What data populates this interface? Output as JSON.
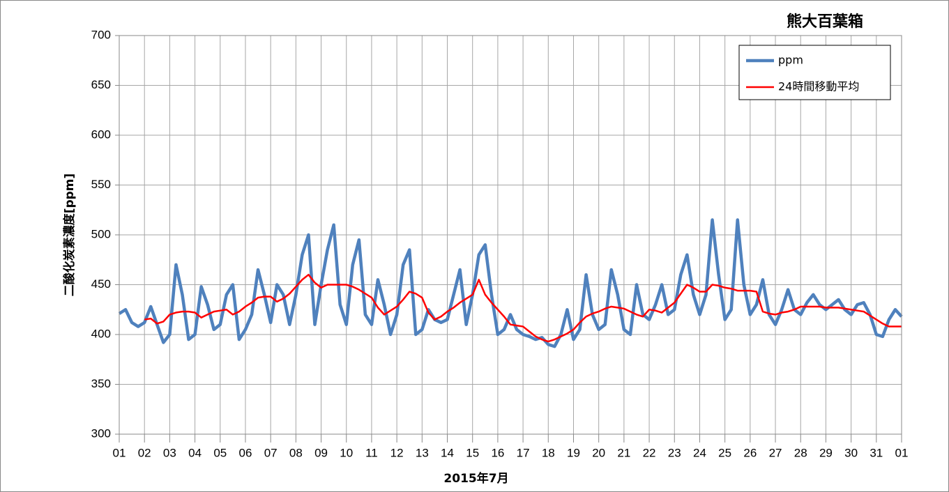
{
  "chart_data": {
    "type": "line",
    "title": "熊大百葉箱",
    "x_label": "2015年7月",
    "y_label": "二酸化炭素濃度[ppm]",
    "ylim": [
      300,
      700
    ],
    "yticks": [
      300,
      350,
      400,
      450,
      500,
      550,
      600,
      650,
      700
    ],
    "xlim": [
      0,
      31
    ],
    "xticks": [
      {
        "value": 0,
        "label": "01"
      },
      {
        "value": 1,
        "label": "02"
      },
      {
        "value": 2,
        "label": "03"
      },
      {
        "value": 3,
        "label": "04"
      },
      {
        "value": 4,
        "label": "05"
      },
      {
        "value": 5,
        "label": "06"
      },
      {
        "value": 6,
        "label": "07"
      },
      {
        "value": 7,
        "label": "08"
      },
      {
        "value": 8,
        "label": "09"
      },
      {
        "value": 9,
        "label": "10"
      },
      {
        "value": 10,
        "label": "11"
      },
      {
        "value": 11,
        "label": "12"
      },
      {
        "value": 12,
        "label": "13"
      },
      {
        "value": 13,
        "label": "14"
      },
      {
        "value": 14,
        "label": "15"
      },
      {
        "value": 15,
        "label": "16"
      },
      {
        "value": 16,
        "label": "17"
      },
      {
        "value": 17,
        "label": "18"
      },
      {
        "value": 18,
        "label": "19"
      },
      {
        "value": 19,
        "label": "20"
      },
      {
        "value": 20,
        "label": "21"
      },
      {
        "value": 21,
        "label": "22"
      },
      {
        "value": 22,
        "label": "23"
      },
      {
        "value": 23,
        "label": "24"
      },
      {
        "value": 24,
        "label": "25"
      },
      {
        "value": 25,
        "label": "26"
      },
      {
        "value": 26,
        "label": "27"
      },
      {
        "value": 27,
        "label": "28"
      },
      {
        "value": 28,
        "label": "29"
      },
      {
        "value": 29,
        "label": "30"
      },
      {
        "value": 30,
        "label": "31"
      },
      {
        "value": 31,
        "label": "01"
      }
    ],
    "grid": true,
    "legend": "top-right",
    "x": [
      0,
      0.25,
      0.5,
      0.75,
      1,
      1.25,
      1.5,
      1.75,
      2,
      2.25,
      2.5,
      2.75,
      3,
      3.25,
      3.5,
      3.75,
      4,
      4.25,
      4.5,
      4.75,
      5,
      5.25,
      5.5,
      5.75,
      6,
      6.25,
      6.5,
      6.75,
      7,
      7.25,
      7.5,
      7.75,
      8,
      8.25,
      8.5,
      8.75,
      9,
      9.25,
      9.5,
      9.75,
      10,
      10.25,
      10.5,
      10.75,
      11,
      11.25,
      11.5,
      11.75,
      12,
      12.25,
      12.5,
      12.75,
      13,
      13.25,
      13.5,
      13.75,
      14,
      14.25,
      14.5,
      14.75,
      15,
      15.25,
      15.5,
      15.75,
      16,
      16.25,
      16.5,
      16.75,
      17,
      17.25,
      17.5,
      17.75,
      18,
      18.25,
      18.5,
      18.75,
      19,
      19.25,
      19.5,
      19.75,
      20,
      20.25,
      20.5,
      20.75,
      21,
      21.25,
      21.5,
      21.75,
      22,
      22.25,
      22.5,
      22.75,
      23,
      23.25,
      23.5,
      23.75,
      24,
      24.25,
      24.5,
      24.75,
      25,
      25.25,
      25.5,
      25.75,
      26,
      26.25,
      26.5,
      26.75,
      27,
      27.25,
      27.5,
      27.75,
      28,
      28.25,
      28.5,
      28.75,
      29,
      29.25,
      29.5,
      29.75,
      30,
      30.25,
      30.5,
      30.75,
      31
    ],
    "series": [
      {
        "name": "ppm",
        "color": "#4f81bd",
        "width": 4.5,
        "values": [
          421,
          425,
          412,
          408,
          412,
          428,
          410,
          392,
          400,
          470,
          440,
          395,
          400,
          448,
          430,
          405,
          410,
          440,
          450,
          395,
          405,
          420,
          465,
          440,
          412,
          450,
          440,
          410,
          440,
          480,
          500,
          410,
          450,
          485,
          510,
          430,
          410,
          470,
          495,
          420,
          410,
          455,
          430,
          400,
          420,
          470,
          485,
          400,
          405,
          425,
          415,
          412,
          415,
          440,
          465,
          410,
          440,
          480,
          490,
          440,
          400,
          405,
          420,
          405,
          400,
          398,
          395,
          397,
          390,
          388,
          400,
          425,
          395,
          405,
          460,
          420,
          405,
          410,
          465,
          440,
          405,
          400,
          450,
          420,
          415,
          430,
          450,
          420,
          425,
          460,
          480,
          440,
          420,
          440,
          515,
          460,
          415,
          425,
          515,
          450,
          420,
          430,
          455,
          420,
          410,
          425,
          445,
          425,
          420,
          432,
          440,
          430,
          425,
          430,
          435,
          425,
          420,
          430,
          432,
          420,
          400,
          398,
          415,
          425,
          418
        ]
      },
      {
        "name": "24時間移動平均",
        "color": "#ff0000",
        "width": 2.5,
        "values": [
          null,
          null,
          null,
          null,
          415,
          416,
          411,
          413,
          420,
          422,
          423,
          423,
          422,
          417,
          420,
          423,
          424,
          425,
          420,
          423,
          428,
          432,
          437,
          438,
          438,
          433,
          436,
          441,
          448,
          455,
          460,
          452,
          447,
          450,
          450,
          450,
          450,
          448,
          445,
          441,
          437,
          427,
          420,
          424,
          428,
          435,
          443,
          441,
          437,
          422,
          415,
          418,
          423,
          427,
          432,
          436,
          440,
          455,
          440,
          432,
          425,
          418,
          410,
          409,
          408,
          403,
          398,
          395,
          393,
          395,
          398,
          401,
          405,
          412,
          418,
          421,
          423,
          426,
          428,
          427,
          426,
          423,
          420,
          418,
          425,
          424,
          422,
          427,
          432,
          441,
          450,
          447,
          443,
          443,
          450,
          449,
          447,
          446,
          444,
          444,
          444,
          443,
          423,
          421,
          420,
          422,
          423,
          425,
          428,
          428,
          428,
          428,
          427,
          427,
          427,
          426,
          425,
          424,
          423,
          419,
          415,
          411,
          408,
          408,
          408
        ]
      }
    ]
  }
}
